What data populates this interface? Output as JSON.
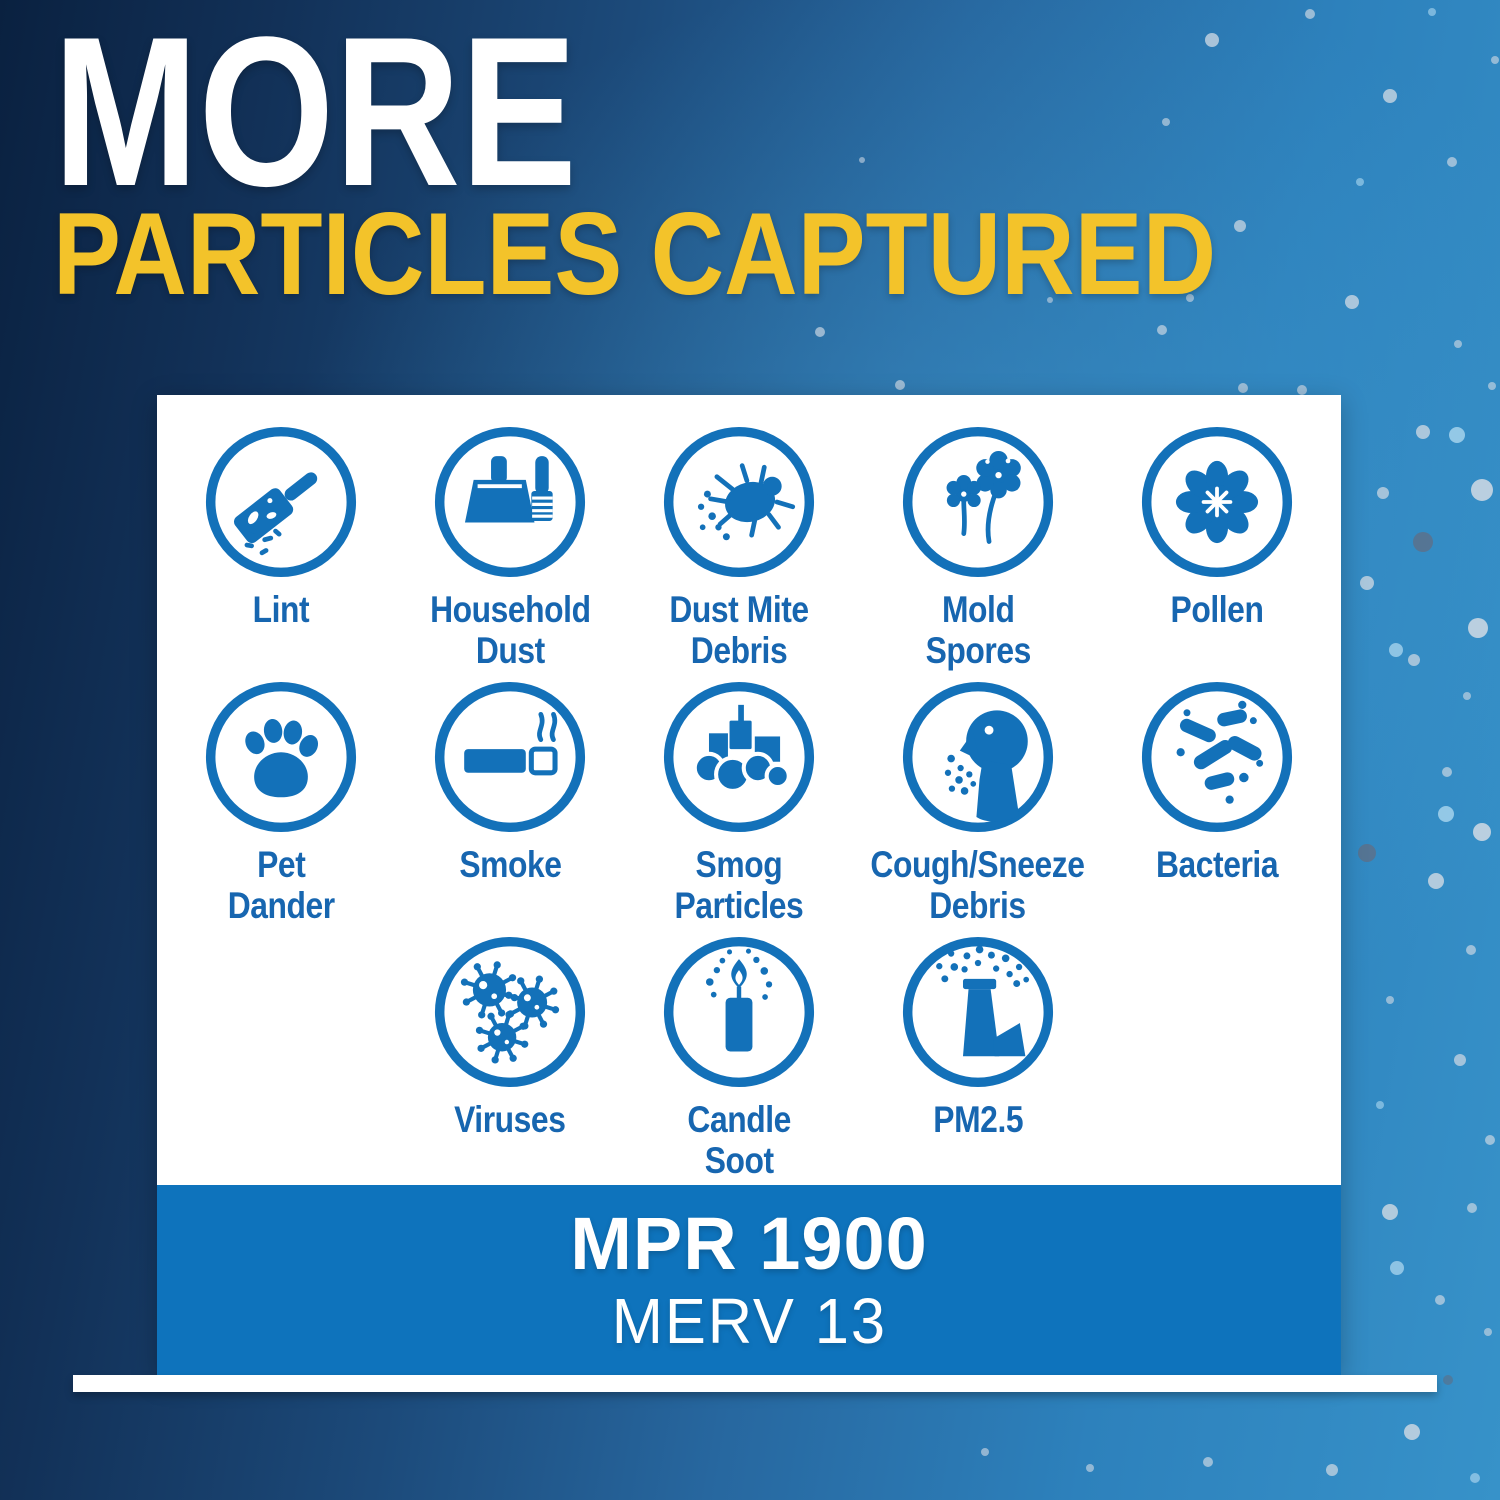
{
  "header": {
    "line1": "MORE",
    "line2": "PARTICLES CAPTURED"
  },
  "particles": [
    {
      "label": "Lint",
      "icon": "lint-roller"
    },
    {
      "label": "Household\nDust",
      "icon": "dustpan-brush"
    },
    {
      "label": "Dust Mite\nDebris",
      "icon": "dust-mite"
    },
    {
      "label": "Mold\nSpores",
      "icon": "mold-spores"
    },
    {
      "label": "Pollen",
      "icon": "pollen-flower"
    },
    {
      "label": "Pet\nDander",
      "icon": "paw-print"
    },
    {
      "label": "Smoke",
      "icon": "cigarette"
    },
    {
      "label": "Smog\nParticles",
      "icon": "smog-city"
    },
    {
      "label": "Cough/Sneeze\nDebris",
      "icon": "sneezing-face"
    },
    {
      "label": "Bacteria",
      "icon": "bacteria"
    },
    {
      "label": "Viruses",
      "icon": "virus"
    },
    {
      "label": "Candle\nSoot",
      "icon": "candle"
    },
    {
      "label": "PM2.5",
      "icon": "smokestack"
    }
  ],
  "footer": {
    "mpr_label": "MPR 1900",
    "merv_label": "MERV 13"
  },
  "colors": {
    "accent_yellow": "#F3C32A",
    "icon_blue": "#1371B9",
    "label_blue": "#1766B0",
    "bar_blue": "#0E73BC",
    "background_navy": "#0B2444",
    "background_blue": "#2D81BC",
    "card_white": "#FFFFFF",
    "dot_light": "#C9D6E2",
    "dot_blue": "#A5D2EC",
    "dot_dark": "#59728F"
  }
}
